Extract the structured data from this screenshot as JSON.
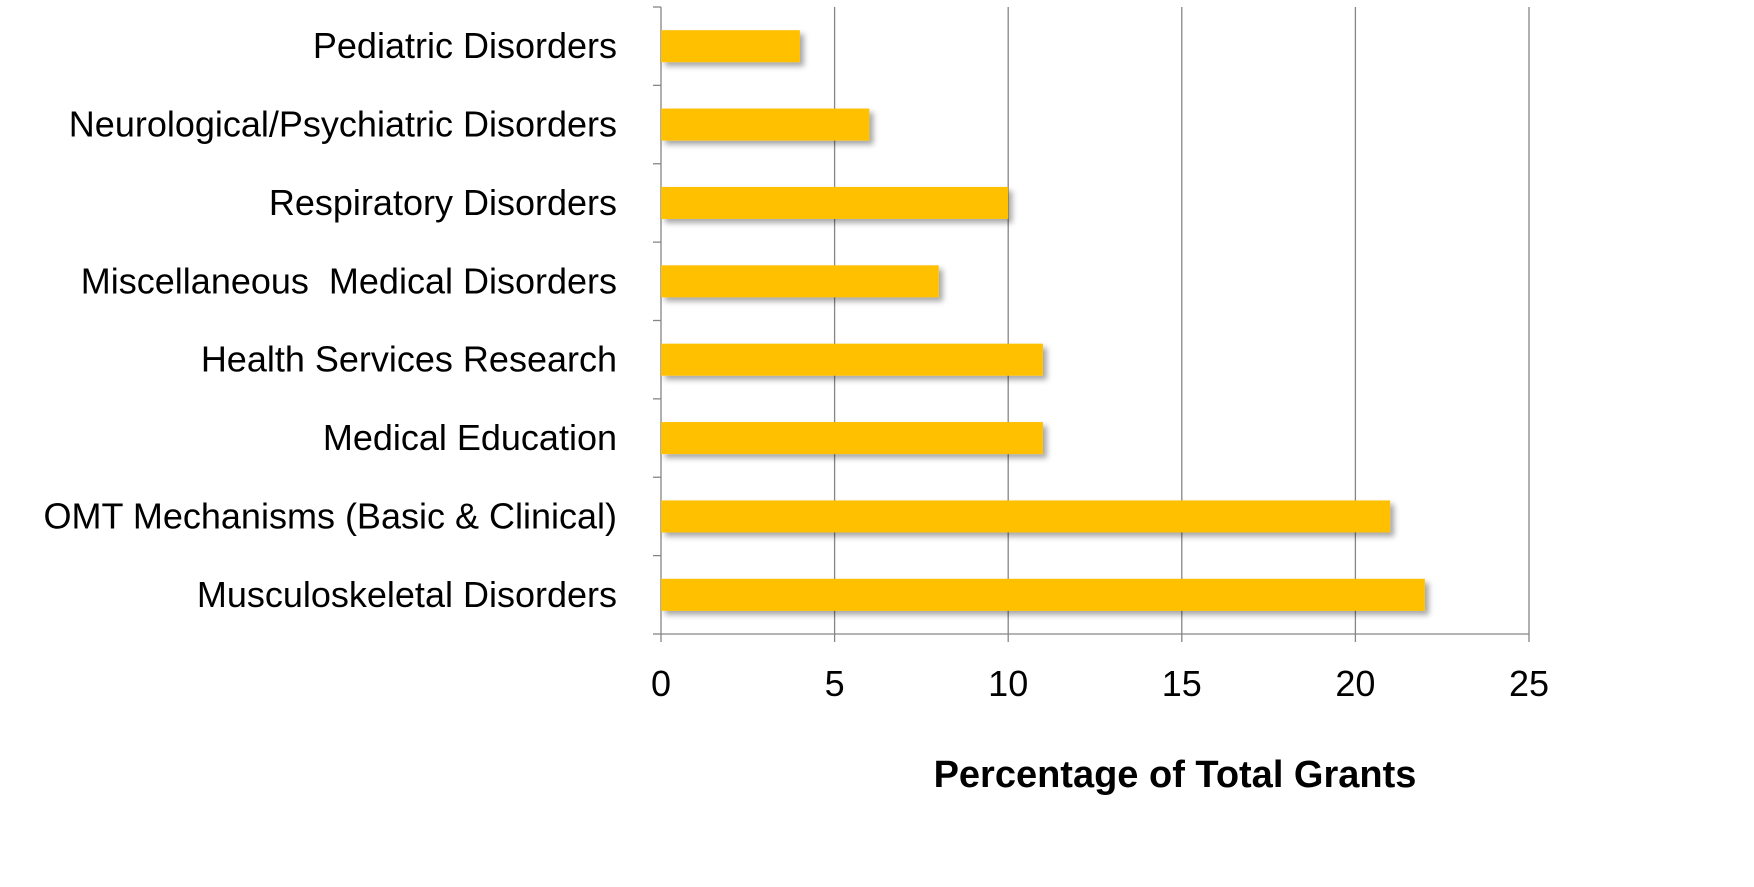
{
  "chart_data": {
    "type": "bar",
    "orientation": "horizontal",
    "categories": [
      "Pediatric Disorders",
      "Neurological/Psychiatric Disorders",
      "Respiratory Disorders",
      "Miscellaneous  Medical Disorders",
      "Health Services Research",
      "Medical Education",
      "OMT Mechanisms (Basic & Clinical)",
      "Musculoskeletal Disorders"
    ],
    "values": [
      4,
      6,
      10,
      8,
      11,
      11,
      21,
      22
    ],
    "xlabel": "Percentage of Total Grants",
    "ylabel": "",
    "xlim": [
      0,
      25
    ],
    "xticks": [
      "0",
      "5",
      "10",
      "15",
      "20",
      "25"
    ],
    "grid": "vertical",
    "legend": "none",
    "bar_color": "#FFC000"
  }
}
